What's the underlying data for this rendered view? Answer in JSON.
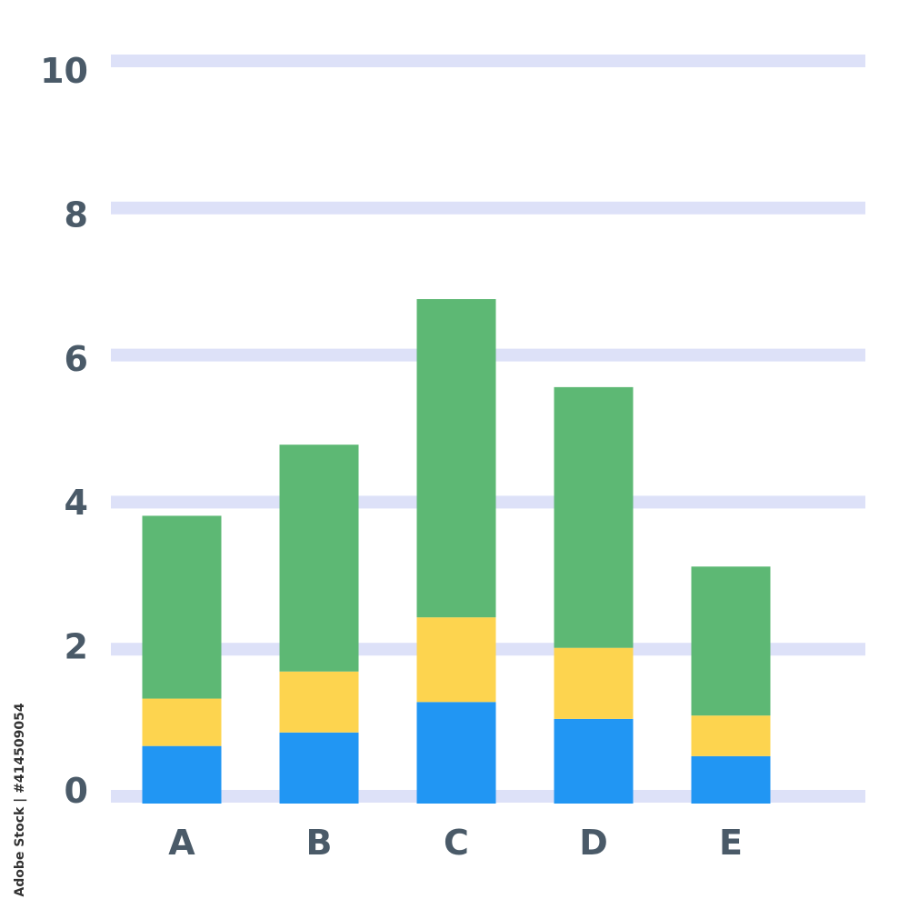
{
  "chart_data": {
    "type": "bar",
    "stacked": true,
    "categories": [
      "A",
      "B",
      "C",
      "D",
      "E"
    ],
    "series": [
      {
        "values": [
          0.85,
          1.05,
          1.5,
          1.25,
          0.7
        ],
        "color": "#2196f3"
      },
      {
        "values": [
          0.7,
          0.9,
          1.25,
          1.05,
          0.6
        ],
        "color": "#fdd44f"
      },
      {
        "values": [
          2.7,
          3.35,
          4.7,
          3.85,
          2.2
        ],
        "color": "#5db874"
      }
    ],
    "yticks": [
      0,
      2,
      4,
      6,
      8,
      10
    ],
    "ylim": [
      0,
      10
    ],
    "grid": true,
    "grid_color": "#dde1f8",
    "label_color": "#4a5a68"
  },
  "credit": "Adobe Stock | #414509054"
}
